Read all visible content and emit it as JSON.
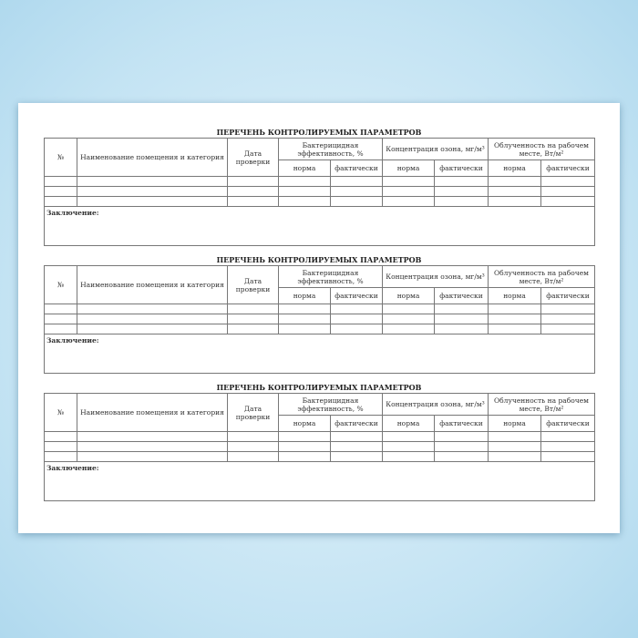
{
  "forms": [
    {
      "title": "ПЕРЕЧЕНЬ КОНТРОЛИРУЕМЫХ ПАРАМЕТРОВ"
    },
    {
      "title": "ПЕРЕЧЕНЬ КОНТРОЛИРУЕМЫХ ПАРАМЕТРОВ"
    },
    {
      "title": "ПЕРЕЧЕНЬ КОНТРОЛИРУЕМЫХ ПАРАМЕТРОВ"
    }
  ],
  "headers": {
    "num": "№",
    "name": "Наименование помещения и категория",
    "date": "Дата проверки",
    "bact": "Бактерицидная эффективность, %",
    "ozone": "Концентрация озона, мг/м³",
    "irr": "Облученность на рабочем месте, Вт/м²",
    "norm": "норма",
    "actual": "фактически"
  },
  "conclusion_label": "Заключение:",
  "data_rows": 3
}
